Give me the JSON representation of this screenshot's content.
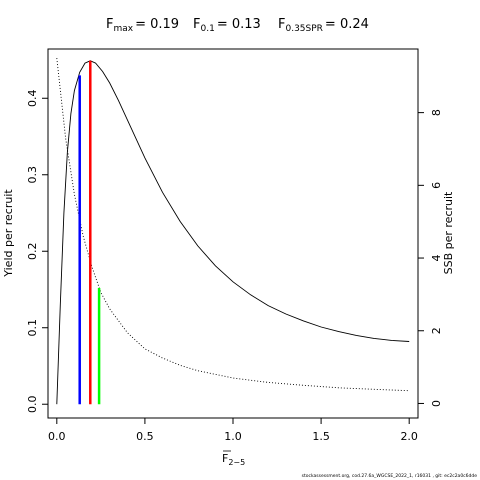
{
  "chart_data": {
    "type": "line",
    "title": {
      "fmax": {
        "label": "F",
        "sub": "max",
        "value": "= 0.19"
      },
      "f01": {
        "label": "F",
        "sub": "0.1",
        "value": "= 0.13"
      },
      "f35": {
        "label": "F",
        "sub": "0.35SPR",
        "value": "= 0.24"
      }
    },
    "xlabel": {
      "main": "F",
      "sub": "2−5"
    },
    "ylabel_left": "Yield per recruit",
    "ylabel_right": "SSB per recruit",
    "xlim": [
      -0.05,
      2.05
    ],
    "ylim_left": [
      -0.018,
      0.4644
    ],
    "ylim_right": [
      -0.4,
      9.75
    ],
    "x_ticks": [
      {
        "v": 0.0,
        "label": "0.0"
      },
      {
        "v": 0.5,
        "label": "0.5"
      },
      {
        "v": 1.0,
        "label": "1.0"
      },
      {
        "v": 1.5,
        "label": "1.5"
      },
      {
        "v": 2.0,
        "label": "2.0"
      }
    ],
    "y_ticks_left": [
      {
        "v": 0.0,
        "label": "0.0"
      },
      {
        "v": 0.1,
        "label": "0.1"
      },
      {
        "v": 0.2,
        "label": "0.2"
      },
      {
        "v": 0.3,
        "label": "0.3"
      },
      {
        "v": 0.4,
        "label": "0.4"
      }
    ],
    "y_ticks_right": [
      {
        "v": 0,
        "label": "0"
      },
      {
        "v": 2,
        "label": "2"
      },
      {
        "v": 4,
        "label": "4"
      },
      {
        "v": 6,
        "label": "6"
      },
      {
        "v": 8,
        "label": "8"
      }
    ],
    "series": [
      {
        "axis": "left",
        "style": "solid",
        "x": [
          0,
          0.02,
          0.04,
          0.06,
          0.08,
          0.1,
          0.13,
          0.16,
          0.19,
          0.22,
          0.26,
          0.3,
          0.35,
          0.4,
          0.45,
          0.5,
          0.6,
          0.7,
          0.8,
          0.9,
          1.0,
          1.1,
          1.2,
          1.3,
          1.4,
          1.5,
          1.6,
          1.7,
          1.8,
          1.9,
          2.0
        ],
        "y": [
          0.0,
          0.13,
          0.25,
          0.33,
          0.38,
          0.41,
          0.434,
          0.446,
          0.449,
          0.446,
          0.435,
          0.42,
          0.397,
          0.372,
          0.347,
          0.322,
          0.277,
          0.239,
          0.207,
          0.181,
          0.16,
          0.143,
          0.129,
          0.118,
          0.109,
          0.101,
          0.095,
          0.09,
          0.086,
          0.0835,
          0.082
        ]
      },
      {
        "axis": "right",
        "style": "dotted",
        "x": [
          0,
          0.05,
          0.1,
          0.15,
          0.2,
          0.25,
          0.3,
          0.4,
          0.5,
          0.6,
          0.7,
          0.8,
          1.0,
          1.2,
          1.4,
          1.6,
          1.8,
          2.0
        ],
        "y": [
          9.5,
          7.3,
          5.75,
          4.6,
          3.75,
          3.05,
          2.6,
          1.95,
          1.5,
          1.25,
          1.05,
          0.9,
          0.7,
          0.58,
          0.5,
          0.43,
          0.39,
          0.35
        ]
      }
    ],
    "reference_lines": [
      {
        "name": "F0.1",
        "x": 0.13,
        "y_top": 0.43,
        "color": "#0000ff"
      },
      {
        "name": "Fmax",
        "x": 0.19,
        "y_top": 0.449,
        "color": "#ff0000"
      },
      {
        "name": "F0.35SPR",
        "x": 0.24,
        "y_top": 0.152,
        "color": "#00ff00"
      }
    ]
  },
  "footer": "stockassessment.org, cod.27.6a_WGCSE_2022_1, r16031 , git: ec2c2a0c6dde"
}
